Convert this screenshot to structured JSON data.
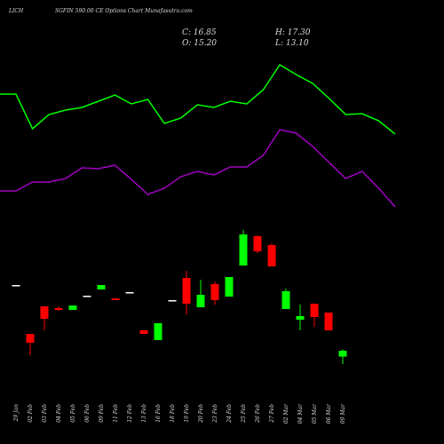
{
  "chart_data": {
    "type": "candlestick",
    "title": [
      "LICH",
      "SGFIN 590.00 CE Options Chart Munafasutra.com"
    ],
    "header": [
      "C: 16.85",
      "H: 17.30",
      "O: 15.20",
      "L: 13.10"
    ],
    "categories": [
      "29 Jan",
      "02 Feb",
      "03 Feb",
      "04 Feb",
      "05 Feb",
      "06 Feb",
      "09 Feb",
      "11 Feb",
      "12 Feb",
      "13 Feb",
      "16 Feb",
      "18 Feb",
      "19 Feb",
      "20 Feb",
      "23 Feb",
      "24 Feb",
      "25 Feb",
      "26 Feb",
      "27 Feb",
      "02 Mar",
      "04 Mar",
      "05 Mar",
      "06 Mar",
      "09 Mar"
    ],
    "open": [
      35.35,
      21.6,
      29.35,
      28.85,
      28.35,
      32.35,
      34.1,
      31.6,
      33.35,
      22.6,
      19.85,
      31.1,
      37.35,
      29.1,
      35.6,
      32.1,
      40.85,
      49.1,
      46.6,
      28.6,
      25.6,
      30.1,
      27.6,
      15.2
    ],
    "high": [
      35.35,
      21.6,
      29.35,
      29.35,
      29.6,
      32.35,
      35.35,
      31.6,
      33.35,
      22.6,
      24.6,
      31.1,
      39.35,
      36.85,
      36.35,
      37.6,
      50.85,
      49.35,
      47.1,
      34.35,
      29.85,
      30.1,
      27.6,
      17.3
    ],
    "low": [
      35.35,
      15.6,
      22.6,
      28.1,
      28.35,
      32.35,
      34.1,
      31.1,
      33.35,
      21.6,
      19.85,
      31.1,
      27.1,
      29.1,
      29.85,
      32.1,
      40.85,
      44.35,
      40.6,
      28.6,
      22.6,
      23.6,
      22.6,
      13.1
    ],
    "close": [
      35.35,
      19.1,
      25.85,
      28.35,
      29.6,
      32.35,
      35.35,
      31.1,
      33.35,
      21.6,
      24.6,
      31.1,
      30.1,
      32.6,
      31.1,
      37.6,
      49.6,
      44.85,
      40.6,
      33.6,
      26.6,
      26.35,
      22.6,
      16.85
    ],
    "up_color": "#00ff00",
    "down_color": "#ff0000",
    "flat_color": "#ffffff",
    "series": [
      {
        "color": "#00ff00",
        "values": [
          89.1,
          79.35,
          83.35,
          84.6,
          85.35,
          87.1,
          88.85,
          86.35,
          87.6,
          80.85,
          82.35,
          86.1,
          85.35,
          87.1,
          86.35,
          90.35,
          97.35,
          94.6,
          92.1,
          87.85,
          83.35,
          83.6,
          81.6,
          77.85
        ]
      },
      {
        "color": "#a000c0",
        "values": [
          61.85,
          64.35,
          64.35,
          65.35,
          68.35,
          68.1,
          69.1,
          65.1,
          60.85,
          62.6,
          65.85,
          67.35,
          66.35,
          68.6,
          68.6,
          71.85,
          79.1,
          78.1,
          74.35,
          69.85,
          65.35,
          67.35,
          62.6,
          57.35
        ]
      }
    ]
  }
}
